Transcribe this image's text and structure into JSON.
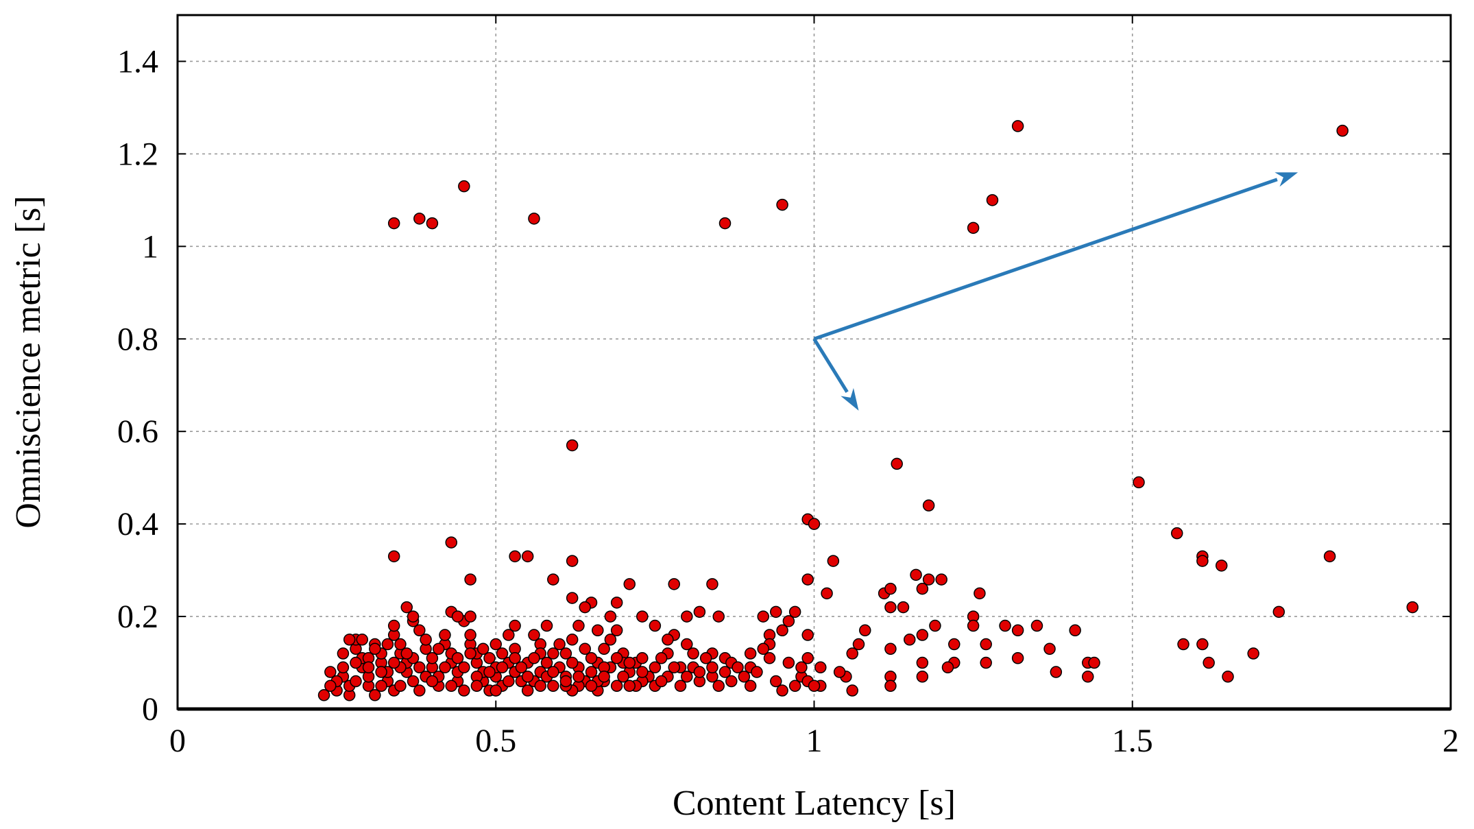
{
  "chart_data": {
    "type": "scatter",
    "title": "",
    "xlabel": "Content Latency [s]",
    "ylabel": "Omniscience metric [s]",
    "xlim": [
      0,
      2
    ],
    "ylim": [
      0,
      1.5
    ],
    "xticks": [
      0,
      0.5,
      1,
      1.5,
      2
    ],
    "xtick_labels": [
      "0",
      "0.5",
      "1",
      "1.5",
      "2"
    ],
    "yticks": [
      0,
      0.2,
      0.4,
      0.6,
      0.8,
      1.0,
      1.2,
      1.4
    ],
    "ytick_labels": [
      "0",
      "0.2",
      "0.4",
      "0.6",
      "0.8",
      "1",
      "1.2",
      "1.4"
    ],
    "grid": true,
    "legend": "none",
    "colors": {
      "marker_fill": "#e00000",
      "marker_edge": "#000000",
      "annotation": "#2a7ab8",
      "grid": "#9a9a9a"
    },
    "annotations": [
      {
        "type": "arrow",
        "from": [
          1.0,
          0.8
        ],
        "to": [
          1.76,
          1.16
        ]
      },
      {
        "type": "arrow",
        "from": [
          1.0,
          0.8
        ],
        "to": [
          1.07,
          0.645
        ]
      }
    ],
    "series": [
      {
        "points": [
          [
            0.34,
            1.05
          ],
          [
            0.38,
            1.06
          ],
          [
            0.4,
            1.05
          ],
          [
            0.45,
            1.13
          ],
          [
            0.56,
            1.06
          ],
          [
            0.86,
            1.05
          ],
          [
            0.95,
            1.09
          ],
          [
            1.25,
            1.04
          ],
          [
            1.28,
            1.1
          ],
          [
            1.32,
            1.26
          ],
          [
            1.83,
            1.25
          ],
          [
            0.62,
            0.57
          ],
          [
            1.13,
            0.53
          ],
          [
            1.18,
            0.44
          ],
          [
            1.51,
            0.49
          ],
          [
            0.99,
            0.41
          ],
          [
            1.0,
            0.4
          ],
          [
            0.43,
            0.36
          ],
          [
            0.34,
            0.33
          ],
          [
            0.53,
            0.33
          ],
          [
            0.55,
            0.33
          ],
          [
            0.62,
            0.32
          ],
          [
            1.03,
            0.32
          ],
          [
            1.57,
            0.38
          ],
          [
            1.61,
            0.33
          ],
          [
            1.61,
            0.32
          ],
          [
            1.64,
            0.31
          ],
          [
            1.81,
            0.33
          ],
          [
            1.94,
            0.22
          ],
          [
            1.73,
            0.21
          ],
          [
            1.69,
            0.12
          ],
          [
            1.65,
            0.07
          ],
          [
            1.62,
            0.1
          ],
          [
            1.61,
            0.14
          ],
          [
            1.58,
            0.14
          ],
          [
            0.46,
            0.28
          ],
          [
            0.59,
            0.28
          ],
          [
            0.78,
            0.27
          ],
          [
            0.84,
            0.27
          ],
          [
            0.99,
            0.28
          ],
          [
            1.02,
            0.25
          ],
          [
            1.11,
            0.25
          ],
          [
            1.12,
            0.26
          ],
          [
            1.16,
            0.29
          ],
          [
            1.17,
            0.26
          ],
          [
            1.18,
            0.28
          ],
          [
            1.2,
            0.28
          ],
          [
            1.26,
            0.25
          ],
          [
            1.25,
            0.2
          ],
          [
            1.25,
            0.18
          ],
          [
            1.3,
            0.18
          ],
          [
            1.32,
            0.17
          ],
          [
            1.35,
            0.18
          ],
          [
            1.41,
            0.17
          ],
          [
            1.37,
            0.13
          ],
          [
            1.32,
            0.11
          ],
          [
            1.27,
            0.1
          ],
          [
            1.27,
            0.14
          ],
          [
            1.38,
            0.08
          ],
          [
            1.43,
            0.1
          ],
          [
            1.44,
            0.1
          ],
          [
            1.43,
            0.07
          ],
          [
            1.22,
            0.14
          ],
          [
            1.22,
            0.1
          ],
          [
            1.21,
            0.09
          ],
          [
            1.19,
            0.18
          ],
          [
            1.17,
            0.16
          ],
          [
            1.15,
            0.15
          ],
          [
            1.14,
            0.22
          ],
          [
            1.12,
            0.22
          ],
          [
            1.12,
            0.13
          ],
          [
            1.12,
            0.07
          ],
          [
            1.12,
            0.05
          ],
          [
            1.17,
            0.07
          ],
          [
            1.17,
            0.1
          ],
          [
            1.08,
            0.17
          ],
          [
            1.07,
            0.14
          ],
          [
            1.06,
            0.12
          ],
          [
            1.05,
            0.07
          ],
          [
            1.06,
            0.04
          ],
          [
            1.04,
            0.08
          ],
          [
            1.01,
            0.09
          ],
          [
            1.01,
            0.05
          ],
          [
            0.99,
            0.11
          ],
          [
            0.99,
            0.16
          ],
          [
            0.97,
            0.21
          ],
          [
            0.96,
            0.19
          ],
          [
            0.95,
            0.17
          ],
          [
            0.93,
            0.16
          ],
          [
            0.93,
            0.14
          ],
          [
            0.92,
            0.13
          ],
          [
            0.93,
            0.11
          ],
          [
            0.92,
            0.2
          ],
          [
            0.94,
            0.21
          ],
          [
            0.9,
            0.12
          ],
          [
            0.9,
            0.09
          ],
          [
            0.89,
            0.07
          ],
          [
            0.9,
            0.05
          ],
          [
            0.94,
            0.06
          ],
          [
            0.95,
            0.04
          ],
          [
            0.97,
            0.05
          ],
          [
            0.98,
            0.07
          ],
          [
            0.99,
            0.06
          ],
          [
            1.0,
            0.05
          ],
          [
            0.96,
            0.1
          ],
          [
            0.98,
            0.09
          ],
          [
            0.85,
            0.2
          ],
          [
            0.82,
            0.21
          ],
          [
            0.8,
            0.2
          ],
          [
            0.8,
            0.14
          ],
          [
            0.81,
            0.12
          ],
          [
            0.84,
            0.12
          ],
          [
            0.86,
            0.11
          ],
          [
            0.87,
            0.1
          ],
          [
            0.86,
            0.08
          ],
          [
            0.84,
            0.07
          ],
          [
            0.82,
            0.06
          ],
          [
            0.85,
            0.05
          ],
          [
            0.87,
            0.06
          ],
          [
            0.79,
            0.09
          ],
          [
            0.78,
            0.16
          ],
          [
            0.77,
            0.15
          ],
          [
            0.77,
            0.12
          ],
          [
            0.76,
            0.11
          ],
          [
            0.75,
            0.09
          ],
          [
            0.74,
            0.07
          ],
          [
            0.73,
            0.06
          ],
          [
            0.72,
            0.05
          ],
          [
            0.71,
            0.08
          ],
          [
            0.72,
            0.1
          ],
          [
            0.75,
            0.18
          ],
          [
            0.73,
            0.2
          ],
          [
            0.71,
            0.27
          ],
          [
            0.69,
            0.23
          ],
          [
            0.68,
            0.2
          ],
          [
            0.69,
            0.17
          ],
          [
            0.68,
            0.15
          ],
          [
            0.67,
            0.13
          ],
          [
            0.66,
            0.1
          ],
          [
            0.65,
            0.08
          ],
          [
            0.64,
            0.06
          ],
          [
            0.63,
            0.05
          ],
          [
            0.62,
            0.04
          ],
          [
            0.61,
            0.07
          ],
          [
            0.6,
            0.09
          ],
          [
            0.61,
            0.12
          ],
          [
            0.62,
            0.15
          ],
          [
            0.63,
            0.18
          ],
          [
            0.62,
            0.24
          ],
          [
            0.65,
            0.23
          ],
          [
            0.64,
            0.22
          ],
          [
            0.66,
            0.17
          ],
          [
            0.7,
            0.12
          ],
          [
            0.7,
            0.1
          ],
          [
            0.68,
            0.09
          ],
          [
            0.67,
            0.06
          ],
          [
            0.66,
            0.04
          ],
          [
            0.69,
            0.05
          ],
          [
            0.7,
            0.07
          ],
          [
            0.58,
            0.18
          ],
          [
            0.56,
            0.16
          ],
          [
            0.57,
            0.14
          ],
          [
            0.59,
            0.12
          ],
          [
            0.58,
            0.1
          ],
          [
            0.57,
            0.08
          ],
          [
            0.56,
            0.06
          ],
          [
            0.55,
            0.04
          ],
          [
            0.54,
            0.06
          ],
          [
            0.53,
            0.08
          ],
          [
            0.52,
            0.1
          ],
          [
            0.53,
            0.13
          ],
          [
            0.52,
            0.16
          ],
          [
            0.53,
            0.18
          ],
          [
            0.51,
            0.05
          ],
          [
            0.5,
            0.07
          ],
          [
            0.5,
            0.09
          ],
          [
            0.51,
            0.12
          ],
          [
            0.5,
            0.14
          ],
          [
            0.49,
            0.04
          ],
          [
            0.48,
            0.06
          ],
          [
            0.48,
            0.08
          ],
          [
            0.47,
            0.1
          ],
          [
            0.47,
            0.12
          ],
          [
            0.46,
            0.14
          ],
          [
            0.46,
            0.16
          ],
          [
            0.45,
            0.19
          ],
          [
            0.46,
            0.2
          ],
          [
            0.45,
            0.04
          ],
          [
            0.44,
            0.06
          ],
          [
            0.44,
            0.08
          ],
          [
            0.43,
            0.1
          ],
          [
            0.43,
            0.12
          ],
          [
            0.42,
            0.14
          ],
          [
            0.42,
            0.16
          ],
          [
            0.43,
            0.21
          ],
          [
            0.44,
            0.2
          ],
          [
            0.41,
            0.05
          ],
          [
            0.41,
            0.07
          ],
          [
            0.4,
            0.09
          ],
          [
            0.4,
            0.11
          ],
          [
            0.39,
            0.13
          ],
          [
            0.39,
            0.15
          ],
          [
            0.38,
            0.17
          ],
          [
            0.37,
            0.19
          ],
          [
            0.37,
            0.2
          ],
          [
            0.36,
            0.22
          ],
          [
            0.38,
            0.04
          ],
          [
            0.37,
            0.06
          ],
          [
            0.36,
            0.08
          ],
          [
            0.36,
            0.1
          ],
          [
            0.35,
            0.12
          ],
          [
            0.35,
            0.14
          ],
          [
            0.34,
            0.16
          ],
          [
            0.34,
            0.18
          ],
          [
            0.34,
            0.04
          ],
          [
            0.33,
            0.06
          ],
          [
            0.33,
            0.08
          ],
          [
            0.32,
            0.1
          ],
          [
            0.32,
            0.12
          ],
          [
            0.31,
            0.14
          ],
          [
            0.31,
            0.03
          ],
          [
            0.3,
            0.05
          ],
          [
            0.3,
            0.07
          ],
          [
            0.29,
            0.09
          ],
          [
            0.29,
            0.11
          ],
          [
            0.28,
            0.13
          ],
          [
            0.28,
            0.15
          ],
          [
            0.27,
            0.03
          ],
          [
            0.27,
            0.05
          ],
          [
            0.26,
            0.07
          ],
          [
            0.26,
            0.09
          ],
          [
            0.25,
            0.04
          ],
          [
            0.25,
            0.06
          ],
          [
            0.24,
            0.08
          ],
          [
            0.24,
            0.05
          ],
          [
            0.23,
            0.03
          ],
          [
            0.27,
            0.15
          ],
          [
            0.29,
            0.15
          ],
          [
            0.31,
            0.13
          ],
          [
            0.33,
            0.14
          ],
          [
            0.35,
            0.09
          ],
          [
            0.37,
            0.11
          ],
          [
            0.39,
            0.07
          ],
          [
            0.41,
            0.13
          ],
          [
            0.43,
            0.05
          ],
          [
            0.45,
            0.09
          ],
          [
            0.47,
            0.07
          ],
          [
            0.49,
            0.11
          ],
          [
            0.51,
            0.09
          ],
          [
            0.53,
            0.11
          ],
          [
            0.55,
            0.1
          ],
          [
            0.57,
            0.12
          ],
          [
            0.59,
            0.05
          ],
          [
            0.61,
            0.05
          ],
          [
            0.63,
            0.09
          ],
          [
            0.65,
            0.11
          ],
          [
            0.67,
            0.09
          ],
          [
            0.69,
            0.11
          ],
          [
            0.71,
            0.05
          ],
          [
            0.73,
            0.11
          ],
          [
            0.75,
            0.05
          ],
          [
            0.77,
            0.07
          ],
          [
            0.79,
            0.05
          ],
          [
            0.81,
            0.09
          ],
          [
            0.83,
            0.11
          ],
          [
            0.35,
            0.05
          ],
          [
            0.32,
            0.08
          ],
          [
            0.3,
            0.11
          ],
          [
            0.28,
            0.06
          ],
          [
            0.26,
            0.12
          ],
          [
            0.42,
            0.09
          ],
          [
            0.46,
            0.12
          ],
          [
            0.48,
            0.13
          ],
          [
            0.5,
            0.04
          ],
          [
            0.52,
            0.06
          ],
          [
            0.54,
            0.09
          ],
          [
            0.56,
            0.11
          ],
          [
            0.58,
            0.07
          ],
          [
            0.6,
            0.14
          ],
          [
            0.62,
            0.1
          ],
          [
            0.64,
            0.13
          ],
          [
            0.66,
            0.06
          ],
          [
            0.38,
            0.09
          ],
          [
            0.4,
            0.06
          ],
          [
            0.44,
            0.11
          ],
          [
            0.36,
            0.12
          ],
          [
            0.34,
            0.1
          ],
          [
            0.3,
            0.09
          ],
          [
            0.28,
            0.1
          ],
          [
            0.32,
            0.05
          ],
          [
            0.47,
            0.05
          ],
          [
            0.49,
            0.08
          ],
          [
            0.55,
            0.07
          ],
          [
            0.57,
            0.05
          ],
          [
            0.59,
            0.08
          ],
          [
            0.61,
            0.06
          ],
          [
            0.63,
            0.07
          ],
          [
            0.65,
            0.05
          ],
          [
            0.67,
            0.07
          ],
          [
            0.71,
            0.1
          ],
          [
            0.73,
            0.08
          ],
          [
            0.76,
            0.06
          ],
          [
            0.78,
            0.09
          ],
          [
            0.8,
            0.07
          ],
          [
            0.82,
            0.08
          ],
          [
            0.84,
            0.09
          ],
          [
            0.88,
            0.09
          ],
          [
            0.91,
            0.08
          ]
        ]
      }
    ]
  }
}
